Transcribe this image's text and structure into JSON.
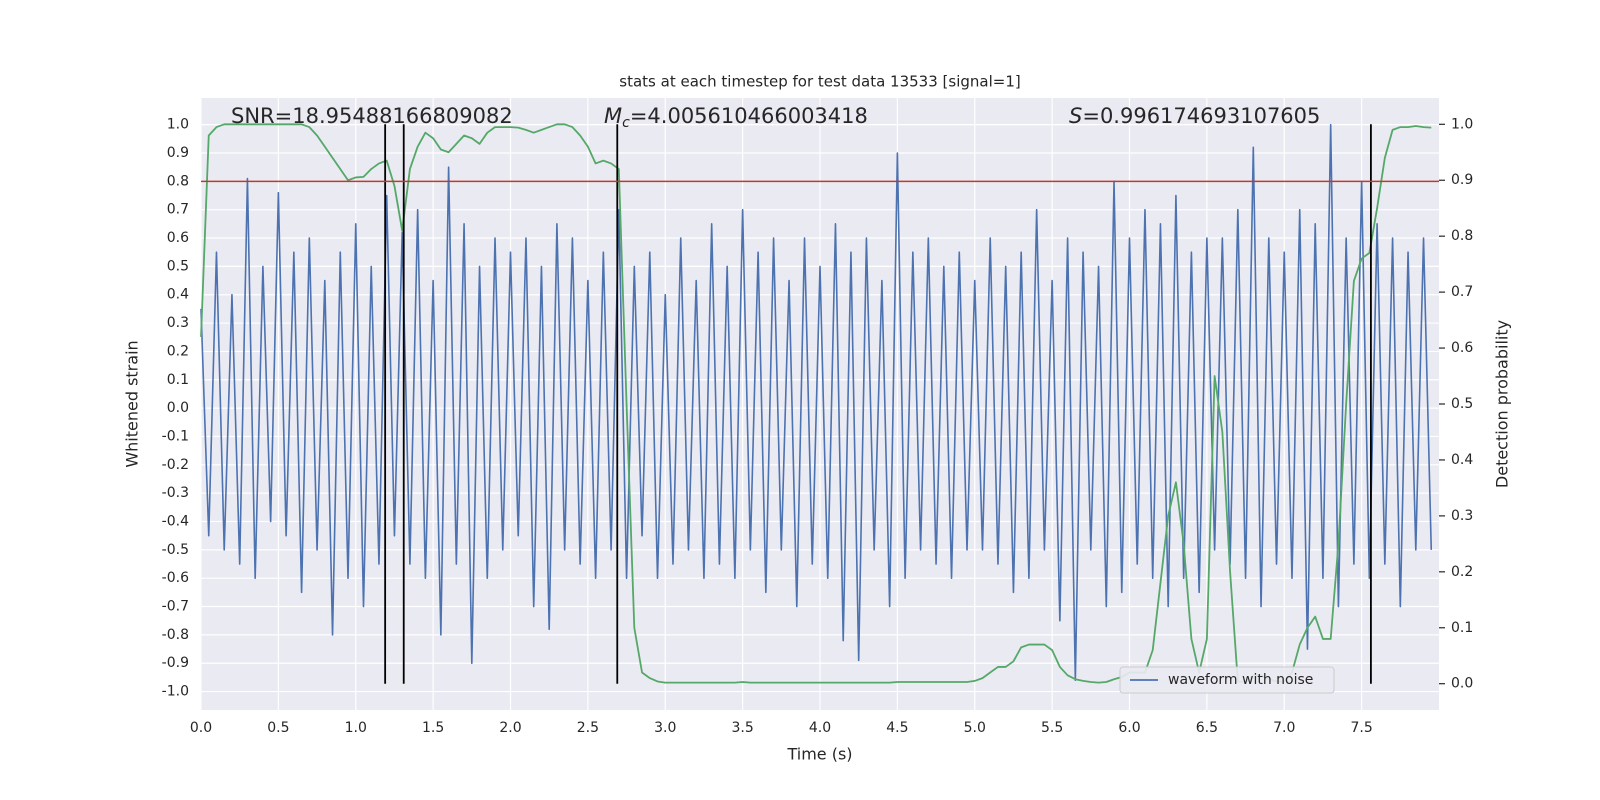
{
  "chart_data": {
    "type": "line",
    "title": "stats at each timestep for test data 13533 [signal=1]",
    "xlabel": "Time (s)",
    "ylabel": "Whitened strain",
    "y2label": "Detection probability",
    "annotations": [
      {
        "text": "SNR=18.95488166809082"
      },
      {
        "symbol": "M",
        "subscript": "c",
        "text": "=4.005610466003418"
      },
      {
        "symbol": "S",
        "text": "=0.996174693107605"
      }
    ],
    "x": [
      0,
      0.05,
      0.1,
      0.15,
      0.2,
      0.25,
      0.3,
      0.35,
      0.4,
      0.45,
      0.5,
      0.55,
      0.6,
      0.65,
      0.7,
      0.75,
      0.8,
      0.85,
      0.9,
      0.95,
      1,
      1.05,
      1.1,
      1.15,
      1.2,
      1.25,
      1.3,
      1.35,
      1.4,
      1.45,
      1.5,
      1.55,
      1.6,
      1.65,
      1.7,
      1.75,
      1.8,
      1.85,
      1.9,
      1.95,
      2,
      2.05,
      2.1,
      2.15,
      2.2,
      2.25,
      2.3,
      2.35,
      2.4,
      2.45,
      2.5,
      2.55,
      2.6,
      2.65,
      2.7,
      2.75,
      2.8,
      2.85,
      2.9,
      2.95,
      3,
      3.05,
      3.1,
      3.15,
      3.2,
      3.25,
      3.3,
      3.35,
      3.4,
      3.45,
      3.5,
      3.55,
      3.6,
      3.65,
      3.7,
      3.75,
      3.8,
      3.85,
      3.9,
      3.95,
      4,
      4.05,
      4.1,
      4.15,
      4.2,
      4.25,
      4.3,
      4.35,
      4.4,
      4.45,
      4.5,
      4.55,
      4.6,
      4.65,
      4.7,
      4.75,
      4.8,
      4.85,
      4.9,
      4.95,
      5,
      5.05,
      5.1,
      5.15,
      5.2,
      5.25,
      5.3,
      5.35,
      5.4,
      5.45,
      5.5,
      5.55,
      5.6,
      5.65,
      5.7,
      5.75,
      5.8,
      5.85,
      5.9,
      5.95,
      6,
      6.05,
      6.1,
      6.15,
      6.2,
      6.25,
      6.3,
      6.35,
      6.4,
      6.45,
      6.5,
      6.55,
      6.6,
      6.65,
      6.7,
      6.75,
      6.8,
      6.85,
      6.9,
      6.95,
      7,
      7.05,
      7.1,
      7.15,
      7.2,
      7.25,
      7.3,
      7.35,
      7.4,
      7.45,
      7.5,
      7.55,
      7.6,
      7.65,
      7.7,
      7.75,
      7.8,
      7.85,
      7.9,
      7.95
    ],
    "series": [
      {
        "name": "waveform with noise",
        "color": "#4c72b0",
        "values": [
          0.35,
          -0.45,
          0.55,
          -0.5,
          0.4,
          -0.55,
          0.81,
          -0.6,
          0.5,
          -0.4,
          0.76,
          -0.45,
          0.55,
          -0.65,
          0.6,
          -0.5,
          0.45,
          -0.8,
          0.55,
          -0.6,
          0.65,
          -0.7,
          0.5,
          -0.55,
          0.75,
          -0.45,
          0.62,
          -0.55,
          0.7,
          -0.6,
          0.45,
          -0.8,
          0.85,
          -0.55,
          0.65,
          -0.9,
          0.5,
          -0.6,
          0.6,
          -0.5,
          0.55,
          -0.45,
          0.6,
          -0.7,
          0.5,
          -0.78,
          0.65,
          -0.5,
          0.6,
          -0.55,
          0.45,
          -0.6,
          0.55,
          -0.5,
          0.7,
          -0.6,
          0.5,
          -0.45,
          0.55,
          -0.6,
          0.4,
          -0.55,
          0.6,
          -0.5,
          0.45,
          -0.6,
          0.65,
          -0.55,
          0.5,
          -0.6,
          0.7,
          -0.5,
          0.55,
          -0.65,
          0.6,
          -0.5,
          0.45,
          -0.7,
          0.6,
          -0.55,
          0.5,
          -0.6,
          0.65,
          -0.82,
          0.55,
          -0.89,
          0.6,
          -0.5,
          0.45,
          -0.7,
          0.9,
          -0.6,
          0.55,
          -0.5,
          0.6,
          -0.55,
          0.5,
          -0.6,
          0.55,
          -0.5,
          0.45,
          -0.5,
          0.6,
          -0.55,
          0.5,
          -0.65,
          0.55,
          -0.6,
          0.7,
          -0.5,
          0.45,
          -0.75,
          0.6,
          -0.96,
          0.55,
          -0.5,
          0.5,
          -0.7,
          0.8,
          -0.65,
          0.6,
          -0.55,
          0.7,
          -0.6,
          0.65,
          -0.7,
          0.75,
          -0.6,
          0.55,
          -0.65,
          0.6,
          -0.5,
          0.6,
          -0.55,
          0.7,
          -0.6,
          0.92,
          -0.7,
          0.6,
          -0.55,
          0.55,
          -0.6,
          0.7,
          -0.85,
          0.65,
          -0.6,
          1.0,
          -0.7,
          0.6,
          -0.55,
          0.8,
          -0.6,
          0.65,
          -0.55,
          0.6,
          -0.7,
          0.55,
          -0.5,
          0.6,
          -0.5
        ]
      },
      {
        "color": "#55a868",
        "axis": "y2",
        "values": [
          0.62,
          0.98,
          0.995,
          1.0,
          1.0,
          1.0,
          1.0,
          1.0,
          1.0,
          1.0,
          1.0,
          1.0,
          1.0,
          1.0,
          0.995,
          0.98,
          0.96,
          0.94,
          0.92,
          0.9,
          0.905,
          0.906,
          0.92,
          0.93,
          0.935,
          0.89,
          0.81,
          0.92,
          0.96,
          0.985,
          0.975,
          0.955,
          0.95,
          0.965,
          0.98,
          0.975,
          0.965,
          0.985,
          0.995,
          0.995,
          0.995,
          0.994,
          0.99,
          0.985,
          0.99,
          0.995,
          1.0,
          1.0,
          0.995,
          0.98,
          0.96,
          0.93,
          0.935,
          0.93,
          0.92,
          0.5,
          0.1,
          0.02,
          0.01,
          0.004,
          0.002,
          0.002,
          0.002,
          0.002,
          0.002,
          0.002,
          0.002,
          0.002,
          0.002,
          0.002,
          0.003,
          0.002,
          0.002,
          0.002,
          0.002,
          0.002,
          0.002,
          0.002,
          0.002,
          0.002,
          0.002,
          0.002,
          0.002,
          0.002,
          0.002,
          0.002,
          0.002,
          0.002,
          0.002,
          0.002,
          0.003,
          0.003,
          0.003,
          0.003,
          0.003,
          0.003,
          0.003,
          0.003,
          0.003,
          0.003,
          0.005,
          0.01,
          0.02,
          0.03,
          0.03,
          0.04,
          0.065,
          0.07,
          0.07,
          0.07,
          0.06,
          0.03,
          0.015,
          0.008,
          0.005,
          0.003,
          0.002,
          0.003,
          0.008,
          0.012,
          0.02,
          0.02,
          0.02,
          0.06,
          0.18,
          0.3,
          0.36,
          0.25,
          0.08,
          0.02,
          0.08,
          0.55,
          0.45,
          0.2,
          0.004,
          0.003,
          0.015,
          0.015,
          0.008,
          0.004,
          0.004,
          0.02,
          0.07,
          0.1,
          0.12,
          0.08,
          0.08,
          0.25,
          0.5,
          0.72,
          0.76,
          0.77,
          0.85,
          0.94,
          0.99,
          0.995,
          0.995,
          0.997,
          0.995,
          0.994
        ]
      }
    ],
    "vlines": {
      "x": [
        1.19,
        1.31,
        2.69,
        7.56
      ],
      "color": "#000000"
    },
    "hline": {
      "y": 0.8,
      "color": "#c0392b"
    },
    "xlim": [
      0,
      8.0
    ],
    "xticks": [
      {
        "value": 0,
        "label": "0.0"
      },
      0.5,
      {
        "value": 1,
        "label": "1.0"
      },
      1.5,
      {
        "value": 2,
        "label": "2.0"
      },
      2.5,
      {
        "value": 3,
        "label": "3.0"
      },
      3.5,
      {
        "value": 4,
        "label": "4.0"
      },
      4.5,
      {
        "value": 5,
        "label": "5.0"
      },
      5.5,
      {
        "value": 6,
        "label": "6.0"
      },
      6.5,
      {
        "value": 7,
        "label": "7.0"
      },
      7.5
    ],
    "ylim": [
      -1.065,
      1.094
    ],
    "yticks": [
      {
        "value": -1,
        "label": "-1.0"
      },
      -0.9,
      -0.8,
      -0.7,
      -0.6,
      -0.5,
      -0.4,
      -0.3,
      -0.2,
      -0.1,
      {
        "value": 0,
        "label": "0.0"
      },
      0.1,
      0.2,
      0.3,
      0.4,
      0.5,
      0.6,
      0.7,
      0.8,
      0.9,
      {
        "value": 1,
        "label": "1.0"
      }
    ],
    "y2lim": [
      -0.047,
      1.047
    ],
    "y2ticks": [
      {
        "value": 0,
        "label": "0.0"
      },
      0.1,
      0.2,
      0.3,
      0.4,
      0.5,
      0.6,
      0.7,
      0.8,
      0.9,
      {
        "value": 1,
        "label": "1.0"
      }
    ],
    "grid": true,
    "legend": "lower right"
  }
}
